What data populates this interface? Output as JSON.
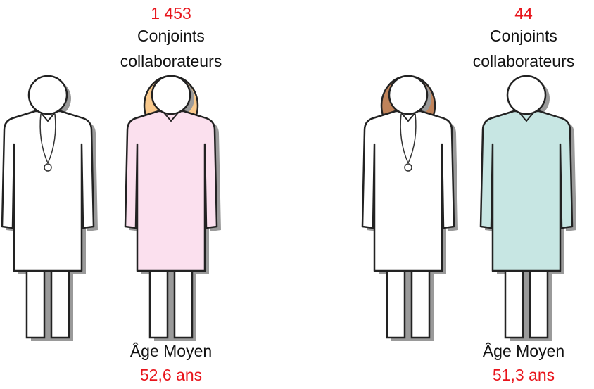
{
  "groups": [
    {
      "count": "1 453",
      "label_lines": [
        "Conjoints",
        "collaborateurs"
      ],
      "age_label": "Âge Moyen",
      "age_value": "52,6 ans"
    },
    {
      "count": "44",
      "label_lines": [
        "Conjoints",
        "collaborateurs"
      ],
      "age_label": "Âge Moyen",
      "age_value": "51,3 ans"
    }
  ]
}
